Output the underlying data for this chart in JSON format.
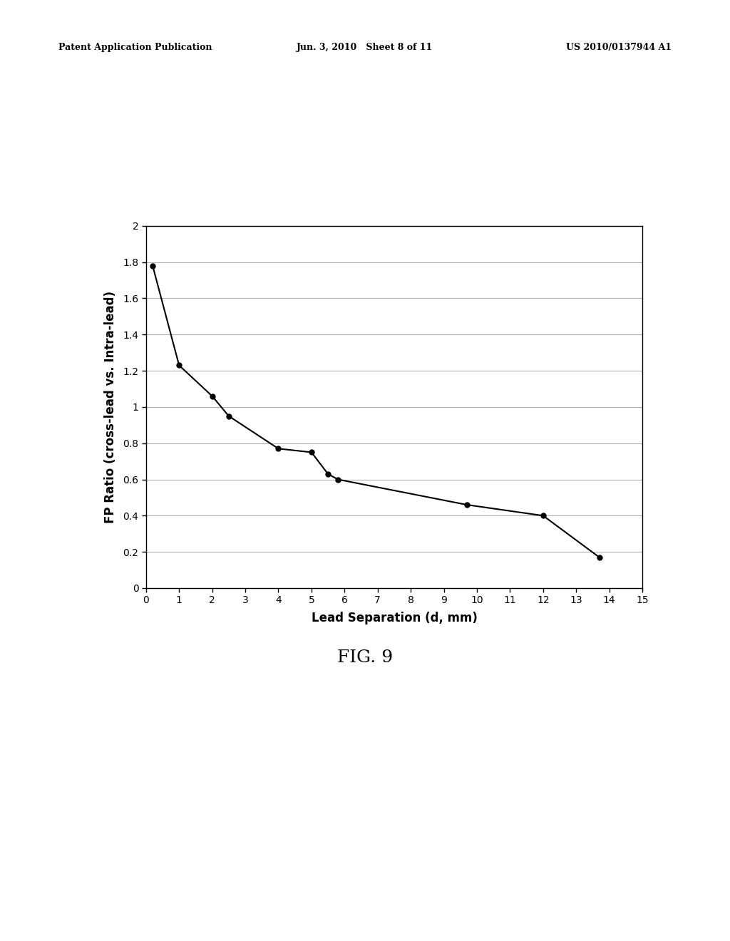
{
  "x_data": [
    0.2,
    1.0,
    2.0,
    2.5,
    4.0,
    5.0,
    5.5,
    5.8,
    9.7,
    12.0,
    13.7
  ],
  "y_data": [
    1.78,
    1.23,
    1.06,
    0.95,
    0.77,
    0.75,
    0.63,
    0.6,
    0.46,
    0.4,
    0.17
  ],
  "xlabel": "Lead Separation (d, mm)",
  "ylabel": "FP Ratio (cross-lead vs. Intra-lead)",
  "fig_label": "FIG. 9",
  "xlim": [
    0,
    15
  ],
  "ylim": [
    0,
    2
  ],
  "xticks": [
    0,
    1,
    2,
    3,
    4,
    5,
    6,
    7,
    8,
    9,
    10,
    11,
    12,
    13,
    14,
    15
  ],
  "yticks": [
    0,
    0.2,
    0.4,
    0.6,
    0.8,
    1.0,
    1.2,
    1.4,
    1.6,
    1.8,
    2.0
  ],
  "line_color": "#000000",
  "marker_color": "#000000",
  "background_color": "#ffffff",
  "grid_color": "#b0b0b0",
  "header_left": "Patent Application Publication",
  "header_center": "Jun. 3, 2010   Sheet 8 of 11",
  "header_right": "US 2010/0137944 A1",
  "axis_label_fontsize": 12,
  "tick_fontsize": 10,
  "fig_label_fontsize": 18,
  "header_fontsize": 9
}
